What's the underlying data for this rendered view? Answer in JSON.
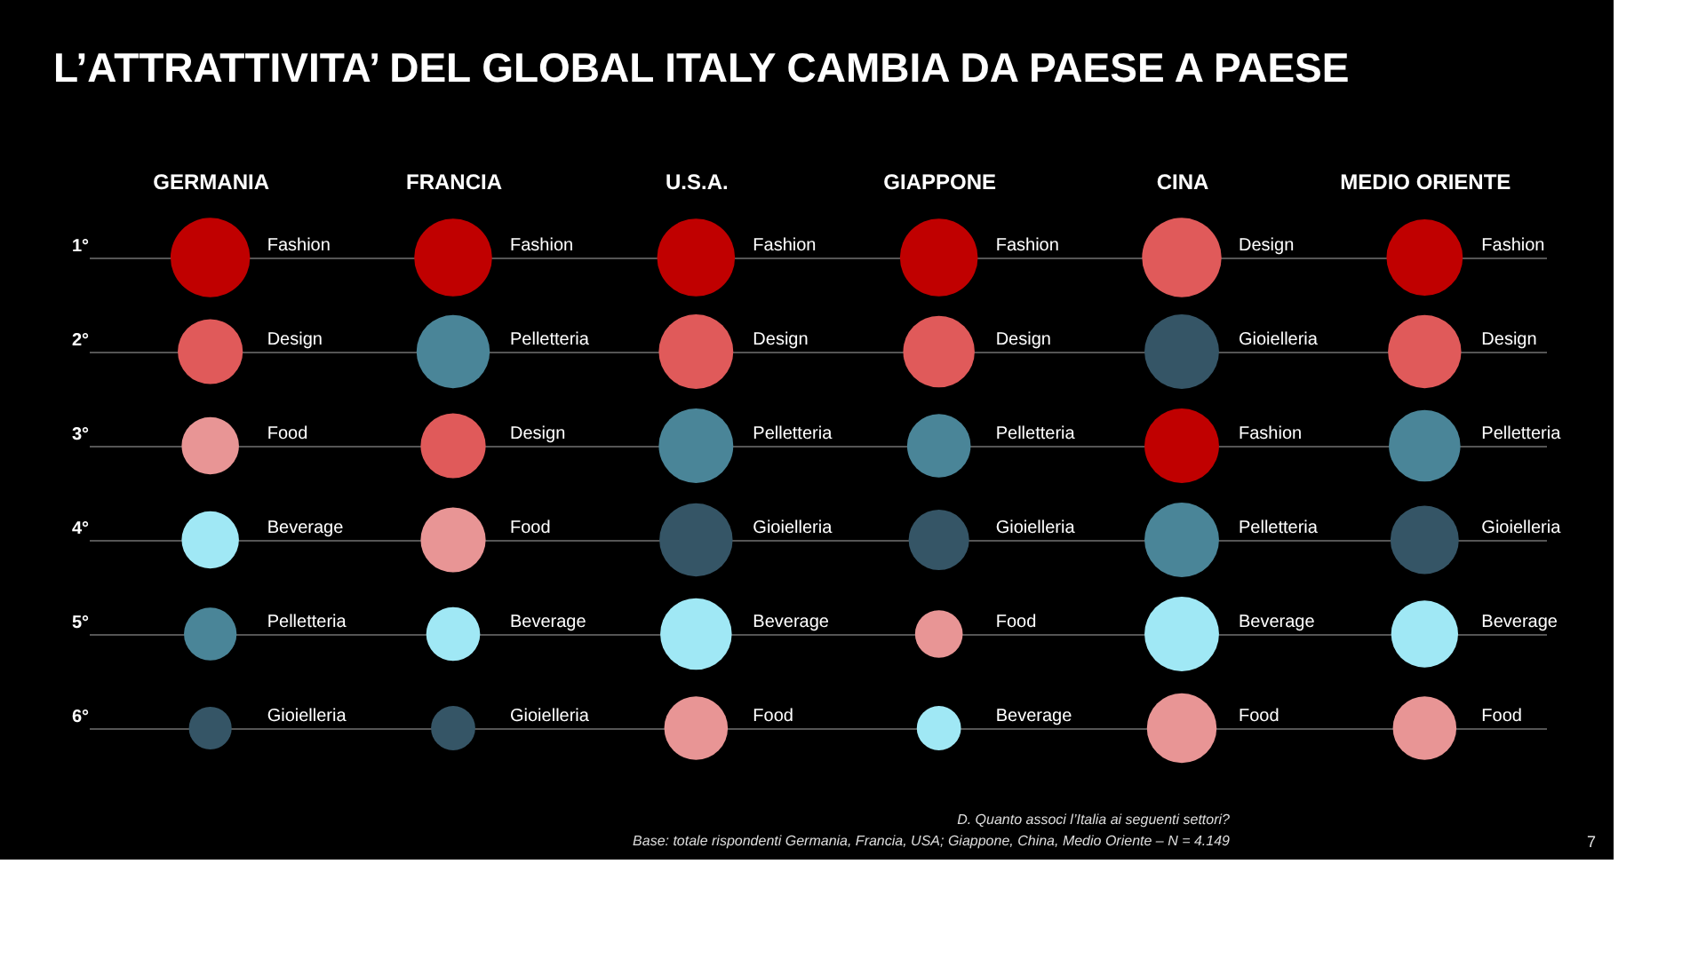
{
  "chart_data": {
    "type": "bubble",
    "title": "L’ATTRATTIVITA’ DEL GLOBAL ITALY CAMBIA DA PAESE A PAESE",
    "categories": [
      "GERMANIA",
      "FRANCIA",
      "U.S.A.",
      "GIAPPONE",
      "CINA",
      "MEDIO ORIENTE"
    ],
    "series": [
      {
        "name": "Fashion",
        "color": "#c00000",
        "values": [
          1,
          1,
          1,
          1,
          3,
          1
        ],
        "sizes": [
          1.0,
          0.96,
          0.96,
          0.96,
          0.88,
          0.92
        ]
      },
      {
        "name": "Design",
        "color": "#e05a5a",
        "values": [
          2,
          3,
          2,
          2,
          1,
          2
        ],
        "sizes": [
          0.67,
          0.67,
          0.88,
          0.81,
          1.0,
          0.85
        ]
      },
      {
        "name": "Food",
        "color": "#e89595",
        "values": [
          3,
          4,
          6,
          5,
          6,
          6
        ],
        "sizes": [
          0.52,
          0.67,
          0.64,
          0.36,
          0.77,
          0.64
        ]
      },
      {
        "name": "Beverage",
        "color": "#a0e8f5",
        "values": [
          4,
          5,
          5,
          6,
          5,
          5
        ],
        "sizes": [
          0.52,
          0.46,
          0.81,
          0.31,
          0.88,
          0.71
        ]
      },
      {
        "name": "Pelletteria",
        "color": "#4a8598",
        "values": [
          5,
          2,
          3,
          3,
          4,
          3
        ],
        "sizes": [
          0.44,
          0.85,
          0.88,
          0.64,
          0.88,
          0.81
        ]
      },
      {
        "name": "Gioielleria",
        "color": "#355566",
        "values": [
          6,
          6,
          4,
          4,
          2,
          4
        ],
        "sizes": [
          0.29,
          0.31,
          0.85,
          0.58,
          0.88,
          0.74
        ]
      }
    ],
    "ylim": [
      6,
      1
    ],
    "yticks": [
      {
        "value": 1,
        "label": "1°"
      },
      {
        "value": 2,
        "label": "2°"
      },
      {
        "value": 3,
        "label": "3°"
      },
      {
        "value": 4,
        "label": "4°"
      },
      {
        "value": 5,
        "label": "5°"
      },
      {
        "value": 6,
        "label": "6°"
      }
    ],
    "grid": "y",
    "legend": false,
    "annotations": [
      "D. Quanto associ l’Italia ai seguenti settori?",
      "Base: totale rispondenti Germania, Francia, USA; Giappone, China, Medio Oriente – N = 4.149",
      "7"
    ]
  }
}
